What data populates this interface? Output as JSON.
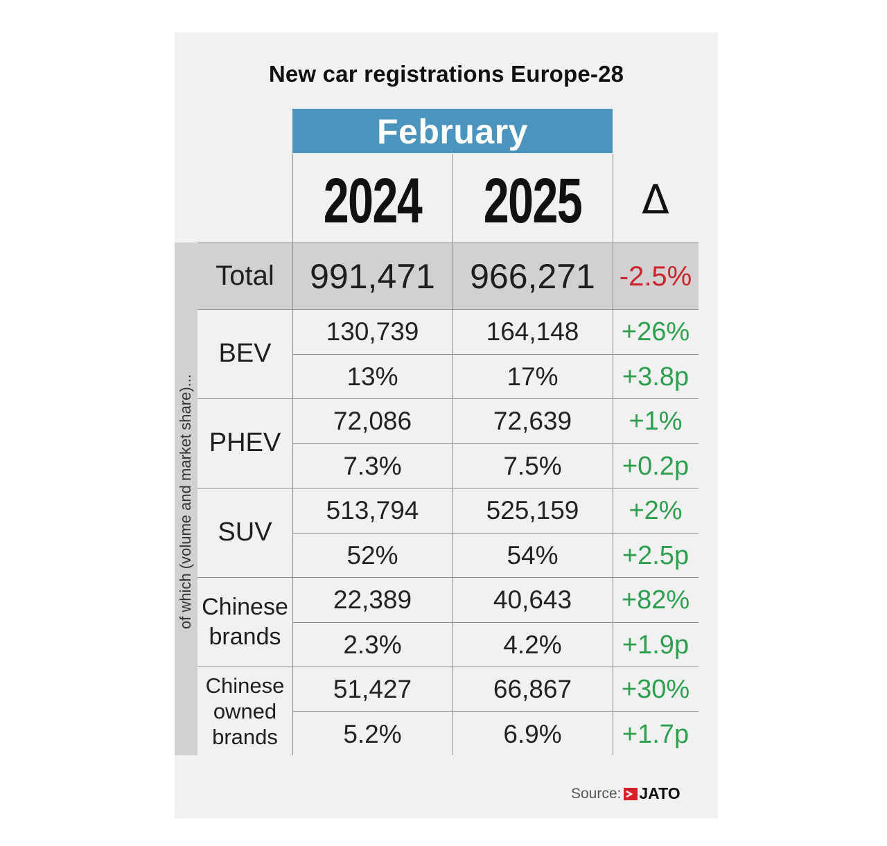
{
  "title": "New car registrations Europe-28",
  "month": "February",
  "columns": {
    "y1": "2024",
    "y2": "2025",
    "delta": "Δ"
  },
  "side_label": "of which (volume and market share)...",
  "total": {
    "label": "Total",
    "v1": "991,471",
    "v2": "966,271",
    "delta": "-2.5%"
  },
  "rows": [
    {
      "label_lines": [
        "BEV"
      ],
      "vol1": "130,739",
      "vol2": "164,148",
      "vol_delta": "+26%",
      "share1": "13%",
      "share2": "17%",
      "share_delta": "+3.8p"
    },
    {
      "label_lines": [
        "PHEV"
      ],
      "vol1": "72,086",
      "vol2": "72,639",
      "vol_delta": "+1%",
      "share1": "7.3%",
      "share2": "7.5%",
      "share_delta": "+0.2p"
    },
    {
      "label_lines": [
        "SUV"
      ],
      "vol1": "513,794",
      "vol2": "525,159",
      "vol_delta": "+2%",
      "share1": "52%",
      "share2": "54%",
      "share_delta": "+2.5p"
    },
    {
      "label_lines": [
        "Chinese",
        "brands"
      ],
      "vol1": "22,389",
      "vol2": "40,643",
      "vol_delta": "+82%",
      "share1": "2.3%",
      "share2": "4.2%",
      "share_delta": "+1.9p"
    },
    {
      "label_lines": [
        "Chinese",
        "owned",
        "brands"
      ],
      "vol1": "51,427",
      "vol2": "66,867",
      "vol_delta": "+30%",
      "share1": "5.2%",
      "share2": "6.9%",
      "share_delta": "+1.7p"
    }
  ],
  "source": {
    "label": "Source:",
    "brand": "JATO"
  },
  "colors": {
    "month_band": "#4a94bd",
    "positive": "#2e9e4f",
    "negative": "#c9252c",
    "band_gray": "#d2d0d0"
  },
  "chart_data": {
    "type": "table",
    "title": "New car registrations Europe-28",
    "period": "February",
    "columns": [
      "",
      "2024",
      "2025",
      "Δ"
    ],
    "rows": [
      [
        "Total",
        "991,471",
        "966,271",
        "-2.5%"
      ],
      [
        "BEV",
        "130,739",
        "164,148",
        "+26%"
      ],
      [
        "BEV",
        "13%",
        "17%",
        "+3.8p"
      ],
      [
        "PHEV",
        "72,086",
        "72,639",
        "+1%"
      ],
      [
        "PHEV",
        "7.3%",
        "7.5%",
        "+0.2p"
      ],
      [
        "SUV",
        "513,794",
        "525,159",
        "+2%"
      ],
      [
        "SUV",
        "52%",
        "54%",
        "+2.5p"
      ],
      [
        "Chinese brands",
        "22,389",
        "40,643",
        "+82%"
      ],
      [
        "Chinese brands",
        "2.3%",
        "4.2%",
        "+1.9p"
      ],
      [
        "Chinese owned brands",
        "51,427",
        "66,867",
        "+30%"
      ],
      [
        "Chinese owned brands",
        "5.2%",
        "6.9%",
        "+1.7p"
      ]
    ]
  }
}
